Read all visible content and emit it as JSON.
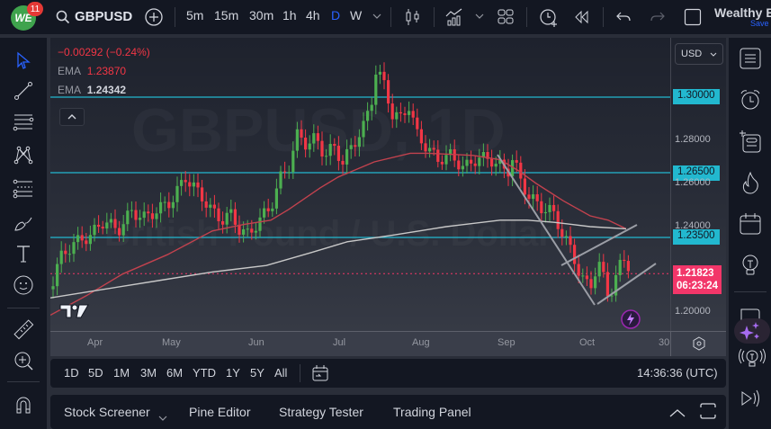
{
  "header": {
    "logo_text": "WE",
    "notification_count": "11",
    "symbol": "GBPUSD",
    "intervals": [
      "5m",
      "15m",
      "30m",
      "1h",
      "4h",
      "D",
      "W"
    ],
    "active_interval": "D",
    "layout_name": "Wealthy E",
    "save_label": "Save"
  },
  "legend": {
    "change": "−0.00292 (−0.24%)",
    "ema1_label": "EMA",
    "ema1_value": "1.23870",
    "ema2_label": "EMA",
    "ema2_value": "1.24342"
  },
  "watermark": {
    "symbol_line": "GBPUSD, 1D",
    "name_line": "British Pound / U.S. Dollar"
  },
  "price_axis": {
    "currency": "USD",
    "labels": [
      "1.28000",
      "1.26000",
      "1.24000",
      "1.20000"
    ],
    "level_tags": [
      "1.30000",
      "1.26500",
      "1.23500"
    ],
    "current_price": "1.21823",
    "countdown": "06:23:24"
  },
  "time_axis": {
    "labels": [
      "Apr",
      "May",
      "Jun",
      "Jul",
      "Aug",
      "Sep",
      "Oct",
      "30"
    ]
  },
  "ranges": {
    "items": [
      "1D",
      "5D",
      "1M",
      "3M",
      "6M",
      "YTD",
      "1Y",
      "5Y",
      "All"
    ],
    "clock": "14:36:36 (UTC)"
  },
  "panels": {
    "tabs": [
      "Stock Screener",
      "Pine Editor",
      "Strategy Tester",
      "Trading Panel"
    ]
  },
  "colors": {
    "up": "#4caf50",
    "down": "#f23645",
    "ema_fast": "#c2424e",
    "ema_slow": "#c8c8c8",
    "level": "#22b8cf",
    "current": "#f23669",
    "accent": "#2962ff"
  },
  "chart_data": {
    "type": "candlestick",
    "title": "GBPUSD, 1D",
    "subtitle": "British Pound / U.S. Dollar",
    "ylim": [
      1.19,
      1.315
    ],
    "horizontal_levels": [
      1.3,
      1.265,
      1.235
    ],
    "current_price": 1.21823,
    "x_labels": [
      "Apr",
      "May",
      "Jun",
      "Jul",
      "Aug",
      "Sep",
      "Oct"
    ],
    "series": [
      {
        "name": "EMA (fast)",
        "value": 1.2387
      },
      {
        "name": "EMA (slow)",
        "value": 1.24342
      }
    ]
  }
}
